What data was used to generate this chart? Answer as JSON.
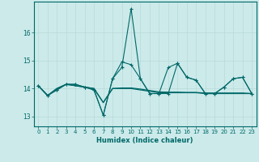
{
  "xlabel": "Humidex (Indice chaleur)",
  "background_color": "#cceaea",
  "grid_color": "#b0d8d8",
  "line_color": "#006868",
  "xlim": [
    -0.5,
    23.5
  ],
  "ylim": [
    12.65,
    17.1
  ],
  "yticks": [
    13,
    14,
    15,
    16
  ],
  "xticks": [
    0,
    1,
    2,
    3,
    4,
    5,
    6,
    7,
    8,
    9,
    10,
    11,
    12,
    13,
    14,
    15,
    16,
    17,
    18,
    19,
    20,
    21,
    22,
    23
  ],
  "line1": [
    14.1,
    13.75,
    13.95,
    14.15,
    14.15,
    14.05,
    13.95,
    13.05,
    14.35,
    14.75,
    16.85,
    14.35,
    13.82,
    13.82,
    14.75,
    14.9,
    14.4,
    14.3,
    13.82,
    13.82,
    14.05,
    14.35,
    14.4,
    13.82
  ],
  "line2": [
    14.1,
    13.75,
    13.95,
    14.15,
    14.15,
    14.05,
    13.95,
    13.05,
    14.35,
    14.95,
    14.85,
    14.35,
    13.82,
    13.82,
    13.82,
    14.9,
    14.4,
    14.3,
    13.82,
    13.82,
    14.05,
    14.35,
    14.4,
    13.82
  ],
  "line3": [
    14.1,
    13.75,
    14.0,
    14.15,
    14.1,
    14.05,
    14.0,
    13.5,
    14.0,
    14.0,
    14.0,
    13.95,
    13.9,
    13.85,
    13.85,
    13.85,
    13.85,
    13.85,
    13.82,
    13.82,
    13.82,
    13.82,
    13.82,
    13.82
  ],
  "line4": [
    14.1,
    13.75,
    14.0,
    14.15,
    14.1,
    14.05,
    14.0,
    13.5,
    14.0,
    14.02,
    14.02,
    13.98,
    13.93,
    13.88,
    13.87,
    13.87,
    13.86,
    13.86,
    13.84,
    13.84,
    13.84,
    13.84,
    13.84,
    13.82
  ]
}
